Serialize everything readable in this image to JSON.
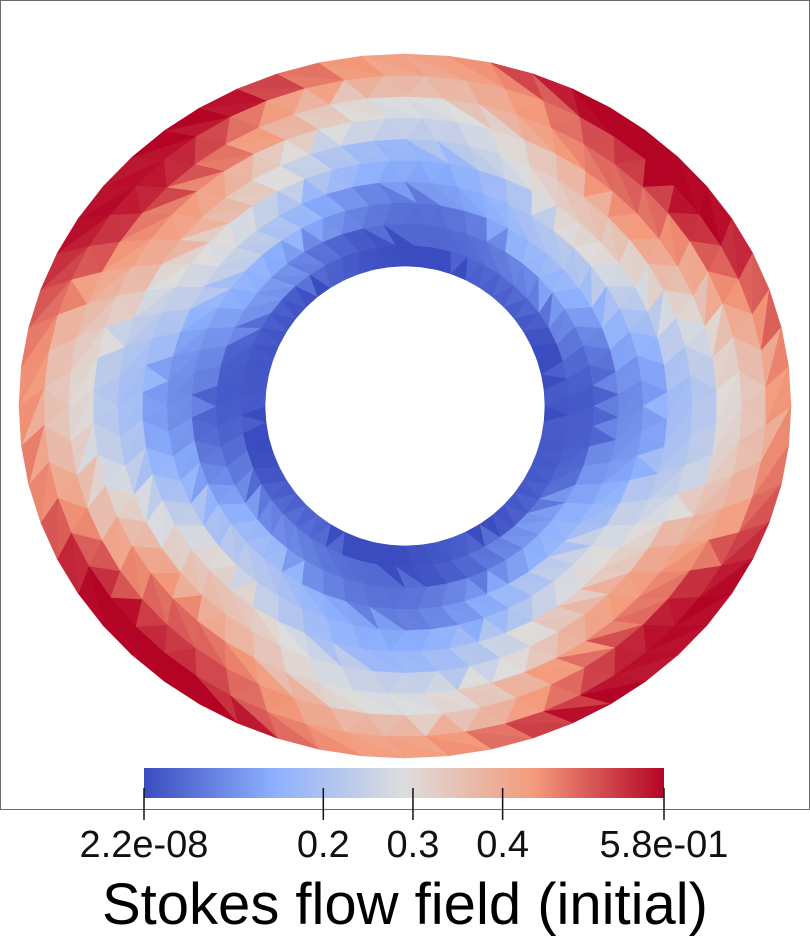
{
  "colorbar": {
    "title": "Stokes flow field (initial)",
    "ticks": [
      {
        "label": "2.2e-08",
        "value": 2.2e-08
      },
      {
        "label": "0.2",
        "value": 0.2
      },
      {
        "label": "0.3",
        "value": 0.3
      },
      {
        "label": "0.4",
        "value": 0.4
      },
      {
        "label": "5.8e-01",
        "value": 0.58
      }
    ],
    "range": [
      2.2e-08,
      0.58
    ],
    "colormap": "cool-to-warm",
    "colors": [
      "#3b4cc0",
      "#8db0fe",
      "#dddddd",
      "#f49a7b",
      "#b40426"
    ]
  },
  "field": {
    "shape": "annulus",
    "mesh": "triangular",
    "min_at": "inner boundary",
    "max_at": "outer boundary, diagonal corners"
  }
}
